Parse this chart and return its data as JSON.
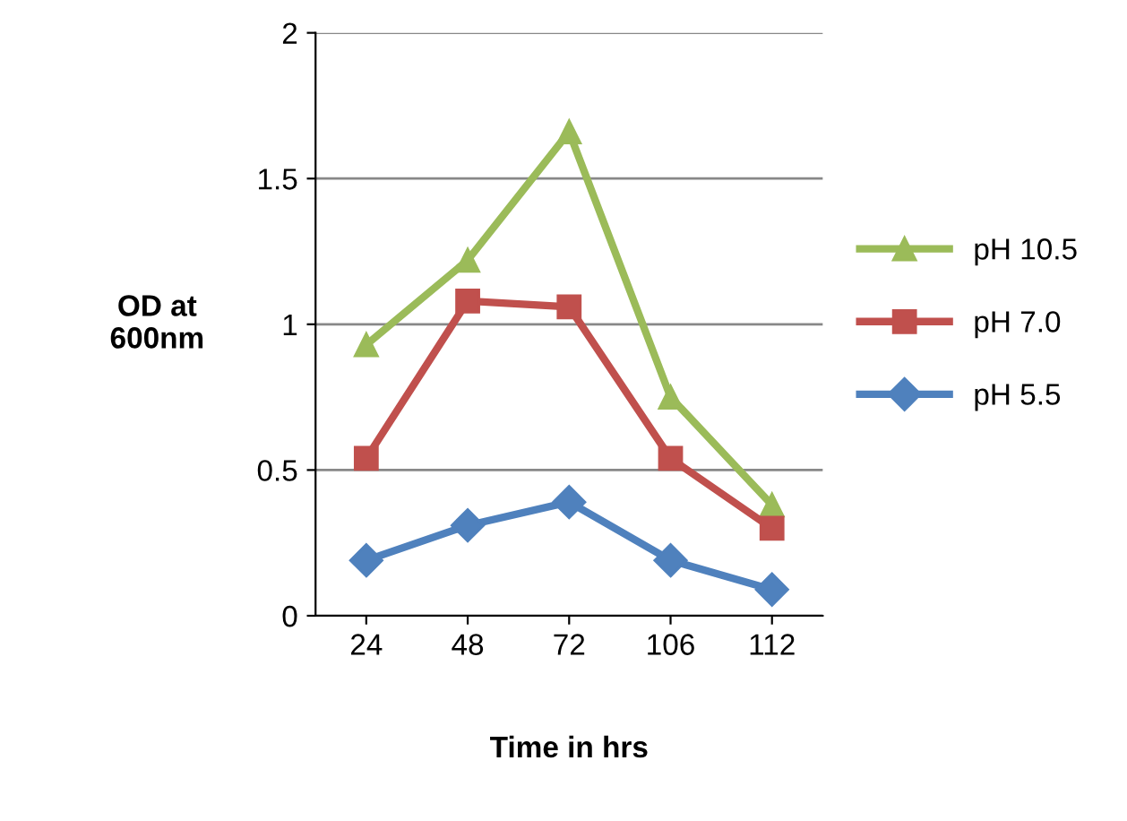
{
  "chart_data": {
    "type": "line",
    "xlabel": "Time in hrs",
    "ylabel": "OD at\n600nm",
    "categories": [
      "24",
      "48",
      "72",
      "106",
      "112"
    ],
    "series": [
      {
        "name": "pH 10.5",
        "color": "#9bbb59",
        "marker": "triangle",
        "values": [
          0.93,
          1.22,
          1.66,
          0.75,
          0.38
        ]
      },
      {
        "name": "pH 7.0",
        "color": "#c0504d",
        "marker": "square",
        "values": [
          0.54,
          1.08,
          1.06,
          0.54,
          0.3
        ]
      },
      {
        "name": "pH 5.5",
        "color": "#4f81bd",
        "marker": "diamond",
        "values": [
          0.19,
          0.31,
          0.39,
          0.19,
          0.09
        ]
      }
    ],
    "ylim": [
      0,
      2
    ],
    "yticks": [
      0,
      0.5,
      1,
      1.5,
      2
    ],
    "grid": "y",
    "legend": "right"
  }
}
